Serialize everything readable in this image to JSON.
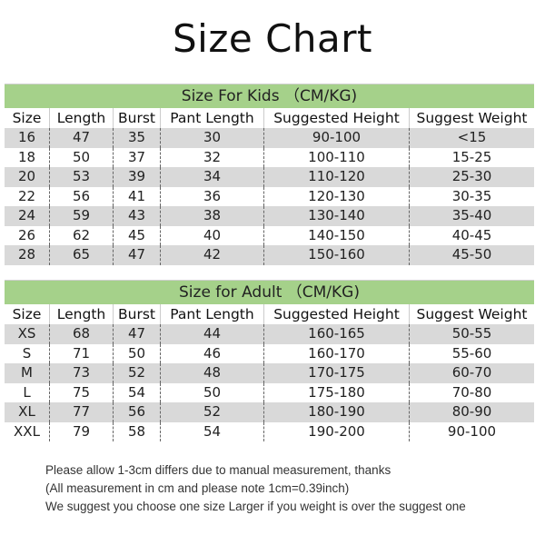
{
  "title": "Size Chart",
  "colors": {
    "band": "#a5d18a",
    "stripe": "#d9d9d9"
  },
  "columns": [
    "Size",
    "Length",
    "Burst",
    "Pant Length",
    "Suggested Height",
    "Suggest Weight"
  ],
  "kids": {
    "heading": "Size For Kids （CM/KG)",
    "rows": [
      [
        "16",
        "47",
        "35",
        "30",
        "90-100",
        "<15"
      ],
      [
        "18",
        "50",
        "37",
        "32",
        "100-110",
        "15-25"
      ],
      [
        "20",
        "53",
        "39",
        "34",
        "110-120",
        "25-30"
      ],
      [
        "22",
        "56",
        "41",
        "36",
        "120-130",
        "30-35"
      ],
      [
        "24",
        "59",
        "43",
        "38",
        "130-140",
        "35-40"
      ],
      [
        "26",
        "62",
        "45",
        "40",
        "140-150",
        "40-45"
      ],
      [
        "28",
        "65",
        "47",
        "42",
        "150-160",
        "45-50"
      ]
    ]
  },
  "adult": {
    "heading": "Size for Adult （CM/KG)",
    "rows": [
      [
        "XS",
        "68",
        "47",
        "44",
        "160-165",
        "50-55"
      ],
      [
        "S",
        "71",
        "50",
        "46",
        "160-170",
        "55-60"
      ],
      [
        "M",
        "73",
        "52",
        "48",
        "170-175",
        "60-70"
      ],
      [
        "L",
        "75",
        "54",
        "50",
        "175-180",
        "70-80"
      ],
      [
        "XL",
        "77",
        "56",
        "52",
        "180-190",
        "80-90"
      ],
      [
        "XXL",
        "79",
        "58",
        "54",
        "190-200",
        "90-100"
      ]
    ]
  },
  "notes": [
    "Please allow 1-3cm differs due to manual measurement, thanks",
    "(All measurement in cm and please note 1cm=0.39inch)",
    "We suggest you choose one size Larger if you weight is over the suggest one"
  ]
}
